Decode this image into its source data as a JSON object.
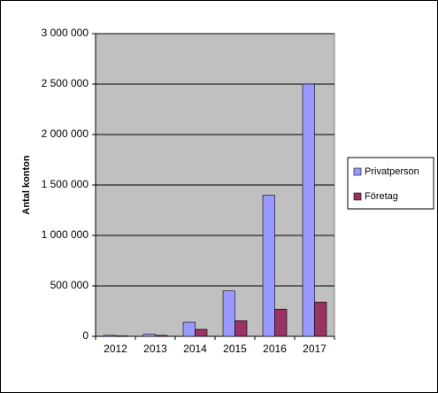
{
  "chart_data": {
    "type": "bar",
    "y_label": "Antal konton",
    "categories": [
      "2012",
      "2013",
      "2014",
      "2015",
      "2016",
      "2017"
    ],
    "series": [
      {
        "name": "Privatperson",
        "color": "#9999ff",
        "values": [
          10000,
          20000,
          140000,
          450000,
          1400000,
          2500000
        ]
      },
      {
        "name": "Företag",
        "color": "#993366",
        "values": [
          5000,
          10000,
          70000,
          155000,
          270000,
          340000
        ]
      }
    ],
    "ylim": [
      0,
      3000000
    ],
    "yticks": [
      0,
      {
        "value": 500000,
        "label": "500 000"
      },
      {
        "value": 1000000,
        "label": "1 000 000"
      },
      {
        "value": 1500000,
        "label": "1 500 000"
      },
      {
        "value": 2000000,
        "label": "2 000 000"
      },
      {
        "value": 2500000,
        "label": "2 500 000"
      },
      {
        "value": 3000000,
        "label": "3 000 000"
      }
    ],
    "grid": true,
    "legend": "right",
    "plot_background": "#c0c0c0"
  }
}
